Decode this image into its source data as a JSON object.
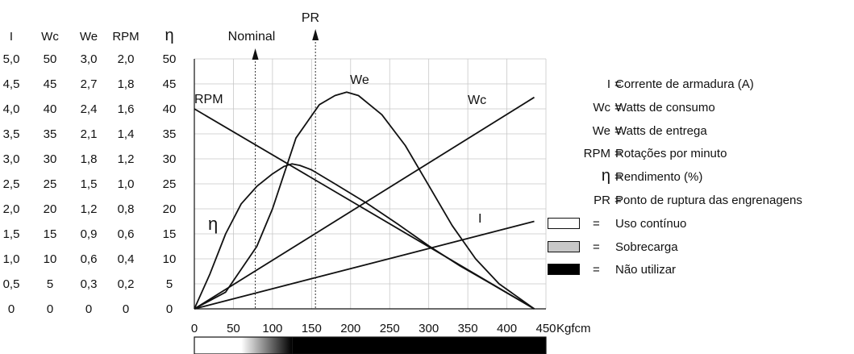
{
  "chart_data": {
    "type": "line",
    "xlabel": "Kgfcm",
    "x_ticks": [
      "0",
      "50",
      "100",
      "150",
      "200",
      "250",
      "300",
      "350",
      "400",
      "450"
    ],
    "xlim": [
      0,
      450
    ],
    "grid": true,
    "scale_columns": [
      {
        "header": "I",
        "ticks": [
          "5,0",
          "4,5",
          "4,0",
          "3,5",
          "3,0",
          "2,5",
          "2,0",
          "1,5",
          "1,0",
          "0,5",
          "0"
        ],
        "max": 5.0
      },
      {
        "header": "Wc",
        "ticks": [
          "50",
          "45",
          "40",
          "35",
          "30",
          "25",
          "20",
          "15",
          "10",
          "5",
          "0"
        ],
        "max": 50
      },
      {
        "header": "We",
        "ticks": [
          "3,0",
          "2,7",
          "2,4",
          "2,1",
          "1,8",
          "1,5",
          "1,2",
          "0,9",
          "0,6",
          "0,3",
          "0"
        ],
        "max": 3.0
      },
      {
        "header": "RPM",
        "ticks": [
          "2,0",
          "1,8",
          "1,6",
          "1,4",
          "1,2",
          "1,0",
          "0,8",
          "0,6",
          "0,4",
          "0,2",
          "0"
        ],
        "max": 2.0
      },
      {
        "header": "η",
        "ticks": [
          "50",
          "45",
          "40",
          "35",
          "30",
          "25",
          "20",
          "15",
          "10",
          "5",
          "0"
        ],
        "max": 50
      }
    ],
    "series": [
      {
        "name": "I",
        "axis": "I",
        "x": [
          0,
          435
        ],
        "y": [
          0,
          1.75
        ]
      },
      {
        "name": "Wc",
        "axis": "Wc",
        "x": [
          0,
          435
        ],
        "y": [
          0,
          42.3
        ]
      },
      {
        "name": "RPM",
        "axis": "RPM",
        "x": [
          0,
          435
        ],
        "y": [
          1.6,
          0
        ]
      },
      {
        "name": "We",
        "axis": "We",
        "x": [
          0,
          40,
          80,
          100,
          130,
          160,
          180,
          195,
          210,
          240,
          270,
          300,
          330,
          360,
          390,
          435
        ],
        "y": [
          0,
          0.2,
          0.75,
          1.2,
          2.05,
          2.45,
          2.56,
          2.6,
          2.56,
          2.33,
          1.96,
          1.48,
          1.0,
          0.6,
          0.3,
          0
        ]
      },
      {
        "name": "η",
        "axis": "η",
        "x": [
          0,
          20,
          40,
          60,
          80,
          100,
          115,
          125,
          135,
          150,
          180,
          220,
          260,
          300,
          340,
          380,
          435
        ],
        "y": [
          0,
          7,
          15,
          21,
          24.5,
          27,
          28.5,
          29,
          28.7,
          27.8,
          25,
          21.2,
          17,
          12.6,
          8.6,
          5,
          0
        ]
      }
    ],
    "series_labels": [
      "RPM",
      "We",
      "Wc",
      "η",
      "I"
    ],
    "markers": [
      {
        "label": "Nominal",
        "x": 78
      },
      {
        "label": "PR",
        "x": 155
      }
    ],
    "band": {
      "white_end": 60,
      "gradient_end": 125,
      "end": 450
    }
  },
  "legend": {
    "items": [
      {
        "key": "I",
        "eq": "=",
        "desc": "Corrente de armadura (A)"
      },
      {
        "key": "Wc",
        "eq": "=",
        "desc": "Watts de consumo"
      },
      {
        "key": "We",
        "eq": "=",
        "desc": "Watts de entrega"
      },
      {
        "key": "RPM",
        "eq": "=",
        "desc": "Rotações por minuto"
      },
      {
        "key": "η",
        "eq": "=",
        "desc": "Rendimento (%)"
      },
      {
        "key": "PR",
        "eq": "=",
        "desc": "Ponto de ruptura das engrenagens"
      }
    ],
    "swatches": [
      {
        "color": "#ffffff",
        "eq": "=",
        "desc": "Uso contínuo"
      },
      {
        "color": "#c8c8c8",
        "eq": "=",
        "desc": "Sobrecarga"
      },
      {
        "color": "#000000",
        "eq": "=",
        "desc": "Não utilizar"
      }
    ]
  }
}
